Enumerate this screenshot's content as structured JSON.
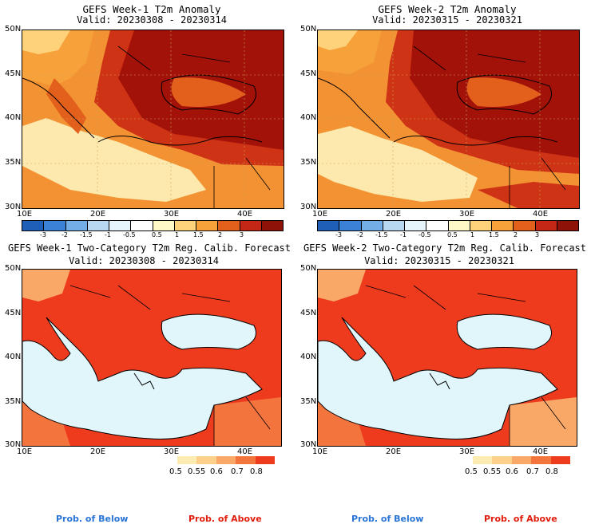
{
  "panels": [
    {
      "title": "GEFS Week-1 T2m Anomaly",
      "valid": "Valid: 20230308 - 20230314"
    },
    {
      "title": "GEFS Week-2 T2m Anomaly",
      "valid": "Valid: 20230315 - 20230321"
    },
    {
      "title": "GEFS Week-1 Two-Category T2m Reg. Calib. Forecast",
      "valid": "Valid: 20230308 - 20230314"
    },
    {
      "title": "GEFS Week-2 Two-Category T2m Reg. Calib. Forecast",
      "valid": "Valid: 20230315 - 20230321"
    }
  ],
  "lat_labels": [
    "50N",
    "45N",
    "40N",
    "35N",
    "30N"
  ],
  "lon_labels": [
    "10E",
    "20E",
    "30E",
    "40E"
  ],
  "anomaly_colorbar": {
    "ticks": [
      "-3",
      "-2",
      "-1.5",
      "-1",
      "-0.5",
      "0.5",
      "1",
      "1.5",
      "2",
      "3"
    ],
    "colors": [
      "#1f5fb8",
      "#3b82d6",
      "#74aee6",
      "#b7d8f0",
      "#e6f4fb",
      "#fff9c8",
      "#fdd27a",
      "#f6a13a",
      "#e2601c",
      "#c42716",
      "#8e1208"
    ]
  },
  "prob_colorbar": {
    "ticks": [
      "0.5",
      "0.55",
      "0.6",
      "0.7",
      "0.8"
    ],
    "colors": [
      "#fdecb2",
      "#fccf8a",
      "#f9a867",
      "#f4743e",
      "#ee3b1d"
    ]
  },
  "footer": {
    "left_below": "Prob. of Below",
    "left_above": "Prob. of Above",
    "right_below": "Prob. of Below",
    "right_above": "Prob. of Above"
  },
  "colors": {
    "sea": "#e1f6fa",
    "land_warm": "#ee3b1d",
    "deep_red": "#a31208",
    "mid_red": "#cf3316",
    "orange": "#f29233",
    "pale": "#fde9ad"
  }
}
